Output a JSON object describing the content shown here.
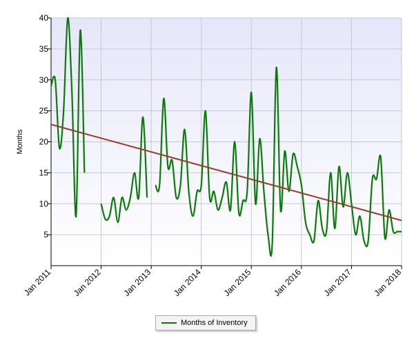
{
  "chart_data": {
    "type": "line",
    "title": "",
    "xlabel": "",
    "ylabel": "Months",
    "ylim": [
      0,
      40
    ],
    "yticks": [
      5,
      10,
      15,
      20,
      25,
      30,
      35,
      40
    ],
    "xlim": [
      "2011-01",
      "2018-01"
    ],
    "xticks": [
      "Jan 2011",
      "Jan 2012",
      "Jan 2013",
      "Jan 2014",
      "Jan 2015",
      "Jan 2016",
      "Jan 2017",
      "Jan 2018"
    ],
    "grid": true,
    "legend": {
      "position": "bottom",
      "entries": [
        "Months of Inventory"
      ]
    },
    "series": [
      {
        "name": "Months of Inventory",
        "color": "#0a7a0a",
        "segments": [
          {
            "x": [
              "2011-01",
              "2011-02",
              "2011-03",
              "2011-04",
              "2011-05",
              "2011-06",
              "2011-07",
              "2011-08",
              "2011-09",
              "2011-10"
            ],
            "y": [
              29,
              30,
              19,
              25,
              40,
              28,
              8,
              38,
              15,
              null
            ]
          },
          {
            "x": [
              "2012-01",
              "2012-02",
              "2012-03",
              "2012-04",
              "2012-05",
              "2012-06",
              "2012-07",
              "2012-08",
              "2012-09",
              "2012-10",
              "2012-11",
              "2012-12"
            ],
            "y": [
              10,
              7.5,
              8,
              11,
              7,
              11,
              9,
              11,
              15,
              11,
              24,
              11
            ]
          },
          {
            "x": [
              "2013-02",
              "2013-03",
              "2013-04",
              "2013-05",
              "2013-06",
              "2013-07",
              "2013-08",
              "2013-09",
              "2013-10",
              "2013-11",
              "2013-12",
              "2014-01",
              "2014-02",
              "2014-03",
              "2014-04",
              "2014-05",
              "2014-06",
              "2014-07",
              "2014-08",
              "2014-09",
              "2014-10",
              "2014-11",
              "2014-12",
              "2015-01",
              "2015-02",
              "2015-03",
              "2015-04",
              "2015-05",
              "2015-06",
              "2015-07",
              "2015-08",
              "2015-09",
              "2015-10",
              "2015-11",
              "2015-12",
              "2016-01",
              "2016-02",
              "2016-03",
              "2016-04",
              "2016-05",
              "2016-06",
              "2016-07",
              "2016-08",
              "2016-09",
              "2016-10",
              "2016-11",
              "2016-12",
              "2017-01",
              "2017-02",
              "2017-03",
              "2017-04",
              "2017-05",
              "2017-06",
              "2017-07",
              "2017-08",
              "2017-09",
              "2017-10",
              "2017-11",
              "2017-12",
              "2018-01"
            ],
            "y": [
              13,
              13,
              27,
              16,
              17,
              11,
              13,
              22,
              12,
              8,
              12,
              13,
              25,
              11,
              12,
              9,
              11,
              13.5,
              9,
              20,
              8.5,
              10.5,
              12,
              28,
              10,
              20.5,
              12,
              5,
              3.5,
              32,
              9,
              18.5,
              12,
              18,
              16,
              13,
              7,
              5,
              4,
              10.5,
              6,
              5.5,
              15,
              6,
              16,
              9.5,
              15,
              10,
              5,
              8,
              4,
              4,
              14,
              14,
              17.5,
              4.5,
              9,
              5.5,
              5.5,
              5.5
            ]
          }
        ]
      },
      {
        "name": "",
        "color": "#9a3b2a",
        "type": "trend",
        "x": [
          "2011-01",
          "2018-01"
        ],
        "y": [
          22.8,
          7.3
        ]
      }
    ]
  }
}
